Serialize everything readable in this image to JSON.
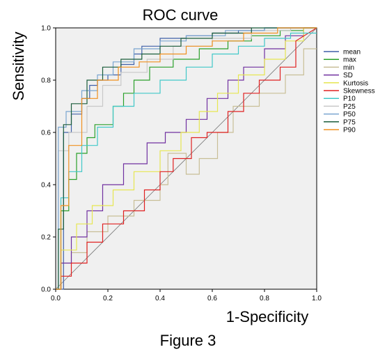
{
  "figure_caption": "Figure 3",
  "chart_data": {
    "type": "line",
    "title": "ROC curve",
    "xlabel": "1-Specificity",
    "ylabel": "Sensitivity",
    "xlim": [
      0,
      1
    ],
    "ylim": [
      0,
      1
    ],
    "xticks": [
      0.0,
      0.2,
      0.4,
      0.6,
      0.8,
      1.0
    ],
    "yticks": [
      0.0,
      0.2,
      0.4,
      0.6,
      0.8,
      1.0
    ],
    "xtick_labels": [
      "0.0",
      "0.2",
      "0.4",
      "0.6",
      "0.8",
      "1.0"
    ],
    "ytick_labels": [
      "0.0",
      "0.2",
      "0.4",
      "0.6",
      "0.8",
      "1.0"
    ],
    "grid": false,
    "background": "#f0f0f0",
    "legend_position": "right",
    "series": [
      {
        "name": "mean",
        "color": "#3f5fa8",
        "x": [
          0,
          0.03,
          0.03,
          0.06,
          0.06,
          0.1,
          0.1,
          0.13,
          0.13,
          0.16,
          0.16,
          0.2,
          0.2,
          0.25,
          0.25,
          0.3,
          0.3,
          0.33,
          0.33,
          0.4,
          0.4,
          0.5,
          0.5,
          0.6,
          0.6,
          0.7,
          0.7,
          0.8,
          0.8,
          0.9,
          0.9,
          1
        ],
        "y": [
          0,
          0,
          0.6,
          0.6,
          0.67,
          0.67,
          0.73,
          0.73,
          0.78,
          0.78,
          0.8,
          0.8,
          0.82,
          0.82,
          0.86,
          0.86,
          0.9,
          0.9,
          0.93,
          0.93,
          0.96,
          0.96,
          0.97,
          0.97,
          0.98,
          0.98,
          0.99,
          0.99,
          1,
          1,
          1,
          1
        ]
      },
      {
        "name": "max",
        "color": "#2aa02a",
        "x": [
          0,
          0.02,
          0.02,
          0.05,
          0.05,
          0.08,
          0.08,
          0.12,
          0.12,
          0.15,
          0.15,
          0.22,
          0.22,
          0.26,
          0.26,
          0.3,
          0.3,
          0.36,
          0.36,
          0.45,
          0.45,
          0.55,
          0.55,
          0.66,
          0.66,
          0.75,
          0.75,
          0.86,
          0.86,
          0.95,
          0.95,
          1
        ],
        "y": [
          0,
          0,
          0.3,
          0.3,
          0.42,
          0.42,
          0.52,
          0.52,
          0.58,
          0.58,
          0.63,
          0.63,
          0.7,
          0.7,
          0.75,
          0.75,
          0.8,
          0.8,
          0.85,
          0.85,
          0.88,
          0.88,
          0.92,
          0.92,
          0.95,
          0.95,
          0.97,
          0.97,
          0.99,
          0.99,
          1,
          1
        ]
      },
      {
        "name": "min",
        "color": "#c8be96",
        "x": [
          0,
          0.02,
          0.02,
          0.06,
          0.06,
          0.12,
          0.12,
          0.2,
          0.2,
          0.3,
          0.3,
          0.4,
          0.4,
          0.43,
          0.43,
          0.5,
          0.5,
          0.55,
          0.55,
          0.62,
          0.62,
          0.68,
          0.68,
          0.78,
          0.78,
          0.88,
          0.88,
          0.95,
          0.95,
          1
        ],
        "y": [
          0,
          0,
          0.1,
          0.1,
          0.14,
          0.14,
          0.22,
          0.22,
          0.28,
          0.28,
          0.34,
          0.34,
          0.4,
          0.4,
          0.52,
          0.52,
          0.44,
          0.44,
          0.5,
          0.5,
          0.6,
          0.6,
          0.7,
          0.7,
          0.75,
          0.75,
          0.82,
          0.82,
          0.92,
          0.92
        ]
      },
      {
        "name": "SD",
        "color": "#7030a0",
        "x": [
          0,
          0.02,
          0.02,
          0.06,
          0.06,
          0.12,
          0.12,
          0.18,
          0.18,
          0.26,
          0.26,
          0.35,
          0.35,
          0.42,
          0.42,
          0.5,
          0.5,
          0.58,
          0.58,
          0.66,
          0.66,
          0.72,
          0.72,
          0.8,
          0.8,
          0.88,
          0.88,
          0.95,
          0.95,
          1
        ],
        "y": [
          0,
          0,
          0.1,
          0.1,
          0.2,
          0.2,
          0.3,
          0.3,
          0.4,
          0.4,
          0.48,
          0.48,
          0.56,
          0.56,
          0.6,
          0.6,
          0.65,
          0.65,
          0.73,
          0.73,
          0.8,
          0.8,
          0.85,
          0.85,
          0.92,
          0.92,
          0.97,
          0.97,
          1,
          1
        ]
      },
      {
        "name": "Kurtosis",
        "color": "#e6e650",
        "x": [
          0,
          0.02,
          0.02,
          0.08,
          0.08,
          0.14,
          0.14,
          0.22,
          0.22,
          0.3,
          0.3,
          0.4,
          0.4,
          0.48,
          0.48,
          0.55,
          0.55,
          0.62,
          0.62,
          0.7,
          0.7,
          0.8,
          0.8,
          0.88,
          0.88,
          0.95,
          0.95,
          1
        ],
        "y": [
          0,
          0,
          0.15,
          0.15,
          0.25,
          0.25,
          0.32,
          0.32,
          0.38,
          0.38,
          0.45,
          0.45,
          0.53,
          0.53,
          0.6,
          0.6,
          0.68,
          0.68,
          0.75,
          0.75,
          0.82,
          0.82,
          0.88,
          0.88,
          0.95,
          0.95,
          1,
          1
        ]
      },
      {
        "name": "Skewness",
        "color": "#e02020",
        "x": [
          0,
          0.02,
          0.02,
          0.06,
          0.06,
          0.12,
          0.12,
          0.18,
          0.18,
          0.26,
          0.26,
          0.34,
          0.34,
          0.4,
          0.4,
          0.45,
          0.45,
          0.52,
          0.52,
          0.58,
          0.58,
          0.66,
          0.66,
          0.72,
          0.72,
          0.78,
          0.78,
          0.86,
          0.86,
          0.92,
          0.92,
          1
        ],
        "y": [
          0,
          0,
          0.05,
          0.05,
          0.1,
          0.1,
          0.18,
          0.18,
          0.25,
          0.25,
          0.3,
          0.3,
          0.38,
          0.38,
          0.45,
          0.45,
          0.5,
          0.5,
          0.58,
          0.58,
          0.6,
          0.6,
          0.68,
          0.68,
          0.75,
          0.75,
          0.8,
          0.8,
          0.85,
          0.85,
          0.95,
          1
        ]
      },
      {
        "name": "P10",
        "color": "#40c8c8",
        "x": [
          0,
          0.02,
          0.02,
          0.05,
          0.05,
          0.1,
          0.1,
          0.16,
          0.16,
          0.22,
          0.22,
          0.3,
          0.3,
          0.4,
          0.4,
          0.5,
          0.5,
          0.6,
          0.6,
          0.7,
          0.7,
          0.8,
          0.8,
          0.9,
          0.9,
          1
        ],
        "y": [
          0,
          0,
          0.35,
          0.35,
          0.45,
          0.45,
          0.55,
          0.55,
          0.62,
          0.62,
          0.7,
          0.7,
          0.75,
          0.75,
          0.8,
          0.8,
          0.85,
          0.85,
          0.9,
          0.9,
          0.93,
          0.93,
          0.96,
          0.96,
          0.98,
          0.98
        ]
      },
      {
        "name": "P25",
        "color": "#c8c8c8",
        "x": [
          0,
          0.01,
          0.01,
          0.05,
          0.05,
          0.12,
          0.12,
          0.18,
          0.18,
          0.25,
          0.25,
          0.35,
          0.35,
          0.45,
          0.45,
          0.6,
          0.6,
          0.75,
          0.75,
          0.9,
          0.9,
          1
        ],
        "y": [
          0,
          0,
          0.53,
          0.53,
          0.6,
          0.6,
          0.7,
          0.7,
          0.78,
          0.78,
          0.83,
          0.83,
          0.88,
          0.88,
          0.93,
          0.93,
          0.96,
          0.96,
          0.99,
          0.99,
          1,
          1
        ]
      },
      {
        "name": "P50",
        "color": "#7aa5d0",
        "x": [
          0,
          0.01,
          0.01,
          0.04,
          0.04,
          0.1,
          0.1,
          0.16,
          0.16,
          0.22,
          0.22,
          0.3,
          0.3,
          0.4,
          0.4,
          0.5,
          0.5,
          0.65,
          0.65,
          0.8,
          0.8,
          1
        ],
        "y": [
          0,
          0,
          0.62,
          0.62,
          0.68,
          0.68,
          0.76,
          0.76,
          0.82,
          0.82,
          0.87,
          0.87,
          0.92,
          0.92,
          0.95,
          0.95,
          0.97,
          0.97,
          0.99,
          0.99,
          1,
          1
        ]
      },
      {
        "name": "P75",
        "color": "#1a5c3a",
        "x": [
          0,
          0.01,
          0.01,
          0.03,
          0.03,
          0.06,
          0.06,
          0.12,
          0.12,
          0.18,
          0.18,
          0.25,
          0.25,
          0.33,
          0.33,
          0.4,
          0.4,
          0.48,
          0.48,
          0.6,
          0.6,
          0.75,
          0.75,
          0.9,
          0.9,
          1
        ],
        "y": [
          0,
          0,
          0.23,
          0.23,
          0.63,
          0.63,
          0.71,
          0.71,
          0.8,
          0.8,
          0.85,
          0.85,
          0.88,
          0.88,
          0.9,
          0.9,
          0.93,
          0.93,
          0.96,
          0.96,
          0.98,
          0.98,
          1,
          1,
          1,
          1
        ]
      },
      {
        "name": "P90",
        "color": "#f0901e",
        "x": [
          0,
          0.02,
          0.02,
          0.05,
          0.05,
          0.1,
          0.1,
          0.16,
          0.16,
          0.24,
          0.24,
          0.32,
          0.32,
          0.4,
          0.4,
          0.5,
          0.5,
          0.6,
          0.6,
          0.72,
          0.72,
          0.85,
          0.85,
          1
        ],
        "y": [
          0,
          0,
          0.32,
          0.32,
          0.55,
          0.55,
          0.73,
          0.73,
          0.8,
          0.8,
          0.85,
          0.85,
          0.87,
          0.87,
          0.9,
          0.9,
          0.93,
          0.93,
          0.95,
          0.95,
          0.98,
          0.98,
          1,
          1
        ]
      }
    ]
  }
}
